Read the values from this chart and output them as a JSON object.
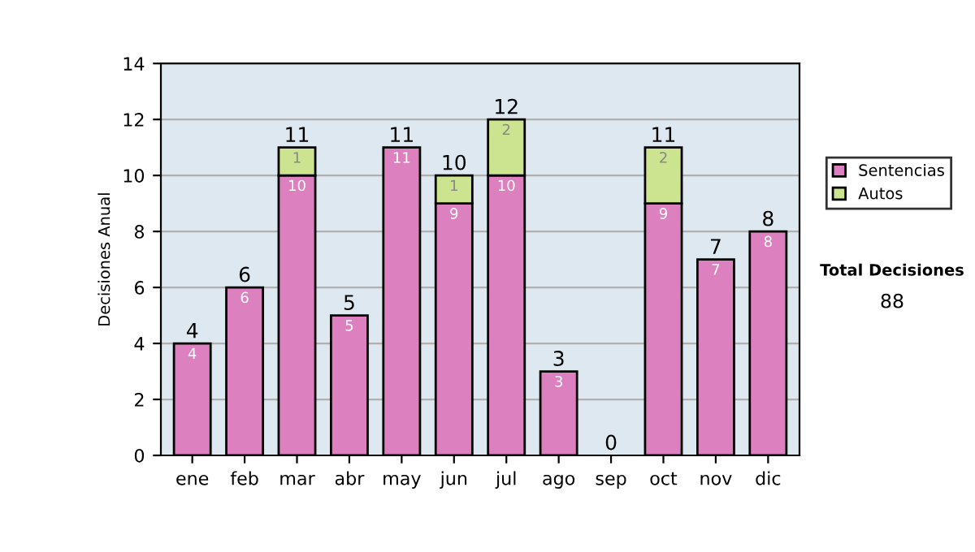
{
  "chart_data": {
    "type": "bar",
    "stacked": true,
    "ylabel": "Decisiones Anual",
    "categories": [
      "ene",
      "feb",
      "mar",
      "abr",
      "may",
      "jun",
      "jul",
      "ago",
      "sep",
      "oct",
      "nov",
      "dic"
    ],
    "series": [
      {
        "name": "Sentencias",
        "color": "#dd80c0",
        "values": [
          4,
          6,
          10,
          5,
          11,
          9,
          10,
          3,
          0,
          9,
          7,
          8
        ],
        "value_labels": [
          "4",
          "6",
          "10",
          "5",
          "11",
          "9",
          "10",
          "3",
          null,
          "9",
          "7",
          "8"
        ]
      },
      {
        "name": "Autos",
        "color": "#cce490",
        "values": [
          0,
          0,
          1,
          0,
          0,
          1,
          2,
          0,
          0,
          2,
          0,
          0
        ],
        "value_labels": [
          null,
          null,
          "1",
          null,
          null,
          "1",
          "2",
          null,
          null,
          "2",
          null,
          null
        ]
      }
    ],
    "totals": [
      "4",
      "6",
      "11",
      "5",
      "11",
      "10",
      "12",
      "3",
      "0",
      "11",
      "7",
      "8"
    ],
    "ylim": [
      0,
      14
    ],
    "yticks": [
      0,
      2,
      4,
      6,
      8,
      10,
      12,
      14
    ],
    "grid": "y",
    "legend": "right",
    "annotations": [
      "Total Decisiones",
      "88"
    ]
  }
}
